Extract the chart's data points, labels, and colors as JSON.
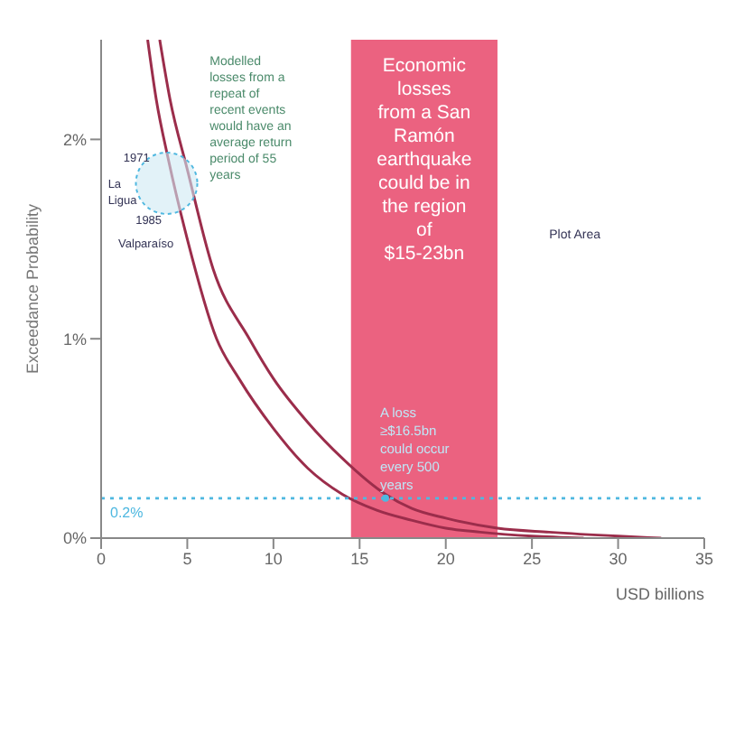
{
  "chart_data": {
    "type": "line",
    "xlabel": "USD billions",
    "ylabel": "Exceedance Probability",
    "xlim": [
      0,
      35
    ],
    "xticks": [
      0,
      5,
      10,
      15,
      20,
      25,
      30,
      35
    ],
    "ylim": [
      0,
      2.5
    ],
    "yticks": [
      {
        "value": 0,
        "label": "0%"
      },
      {
        "value": 1,
        "label": "1%"
      },
      {
        "value": 2,
        "label": "2%"
      }
    ],
    "marker": "none",
    "line_style": "solid",
    "series": [
      {
        "color": "#9b2d4b",
        "x": [
          2.7,
          3.2,
          3.9,
          5,
          6.7,
          8,
          10,
          12,
          14,
          16,
          18,
          20,
          22,
          25,
          28
        ],
        "values": [
          2.5,
          2.2,
          1.9,
          1.5,
          1.0,
          0.8,
          0.55,
          0.35,
          0.22,
          0.14,
          0.09,
          0.05,
          0.03,
          0.01,
          0
        ]
      },
      {
        "color": "#9b2d4b",
        "x": [
          3.4,
          4,
          5,
          6.5,
          8.6,
          10,
          12,
          14,
          16.5,
          18,
          20,
          23,
          26,
          30,
          32.5
        ],
        "values": [
          2.5,
          2.2,
          1.85,
          1.35,
          1.0,
          0.8,
          0.58,
          0.4,
          0.22,
          0.15,
          0.1,
          0.05,
          0.03,
          0.01,
          0
        ]
      }
    ],
    "bands": [
      {
        "axis": "x",
        "from": 14.5,
        "to": 23,
        "color": "#e8476a",
        "label": "Economic losses from a San Ramón earthquake could be in the region of $15-23bn"
      }
    ],
    "ref_lines": [
      {
        "axis": "y",
        "value": 0.2,
        "label": "0.2%",
        "color": "#4fb8e0",
        "line_style": "dotted"
      }
    ],
    "annotations": [
      "Modelled losses from a repeat of recent events would have an average return period of 55 years",
      "1971",
      "La Ligua",
      "1985",
      "Valparaíso",
      {
        "text": "A loss ≥$16.5bn could occur every 500 years",
        "x": 16.5,
        "y": 0.2
      },
      "Plot Area"
    ]
  }
}
